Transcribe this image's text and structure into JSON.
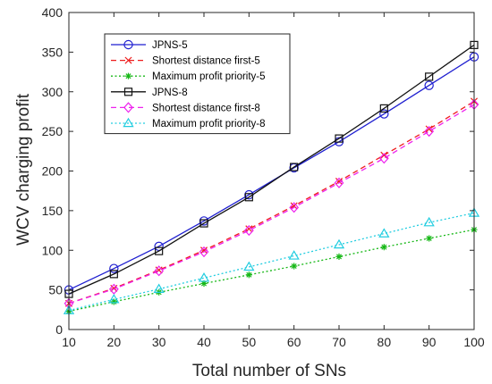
{
  "chart_data": {
    "type": "line",
    "title": "",
    "xlabel": "Total number of SNs",
    "ylabel": "WCV charging profit",
    "xlim": [
      10,
      100
    ],
    "ylim": [
      0,
      400
    ],
    "x": [
      10,
      20,
      30,
      40,
      50,
      60,
      70,
      80,
      90,
      100
    ],
    "x_ticks": [
      10,
      20,
      30,
      40,
      50,
      60,
      70,
      80,
      90,
      100
    ],
    "y_ticks": [
      0,
      50,
      100,
      150,
      200,
      250,
      300,
      350,
      400
    ],
    "grid": false,
    "legend_position": "top-left",
    "series": [
      {
        "name": "JPNS-5",
        "color": "#1f1fd0",
        "line_style": "solid",
        "marker": "circle",
        "values": [
          50,
          77,
          105,
          137,
          170,
          204,
          237,
          272,
          308,
          344
        ]
      },
      {
        "name": "Shortest distance first-5",
        "color": "#ee1c1c",
        "line_style": "dashed",
        "marker": "x",
        "values": [
          33,
          52,
          75,
          100,
          127,
          156,
          187,
          220,
          253,
          288
        ]
      },
      {
        "name": "Maximum profit priority-5",
        "color": "#18b818",
        "line_style": "dotted",
        "marker": "asterisk",
        "values": [
          23,
          35,
          47,
          58,
          69,
          80,
          92,
          104,
          115,
          126
        ]
      },
      {
        "name": "JPNS-8",
        "color": "#111111",
        "line_style": "solid",
        "marker": "square",
        "values": [
          45,
          70,
          99,
          134,
          167,
          205,
          241,
          279,
          319,
          359
        ]
      },
      {
        "name": "Shortest distance first-8",
        "color": "#ee22ee",
        "line_style": "dashed",
        "marker": "diamond",
        "values": [
          33,
          51,
          74,
          98,
          125,
          154,
          185,
          216,
          250,
          284
        ]
      },
      {
        "name": "Maximum profit priority-8",
        "color": "#22cde0",
        "line_style": "dotted",
        "marker": "triangle",
        "values": [
          24,
          38,
          51,
          65,
          79,
          93,
          107,
          121,
          135,
          147
        ]
      }
    ]
  }
}
